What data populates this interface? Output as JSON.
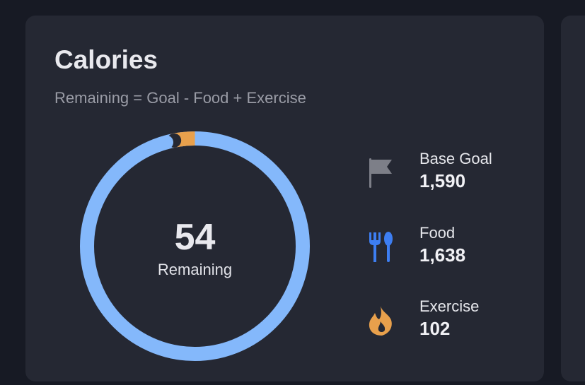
{
  "card": {
    "title": "Calories",
    "subtitle": "Remaining = Goal - Food + Exercise"
  },
  "ring": {
    "value": "54",
    "label": "Remaining",
    "remaining_fraction": 0.034,
    "colors": {
      "food": "#84b8fb",
      "remaining": "#e8a04c",
      "track": "#252833"
    }
  },
  "stats": [
    {
      "icon": "flag-icon",
      "label": "Base Goal",
      "value": "1,590",
      "color": "#7d7f88"
    },
    {
      "icon": "fork-spoon-icon",
      "label": "Food",
      "value": "1,638",
      "color": "#3d7ef2"
    },
    {
      "icon": "flame-icon",
      "label": "Exercise",
      "value": "102",
      "color": "#e8a04c"
    }
  ]
}
